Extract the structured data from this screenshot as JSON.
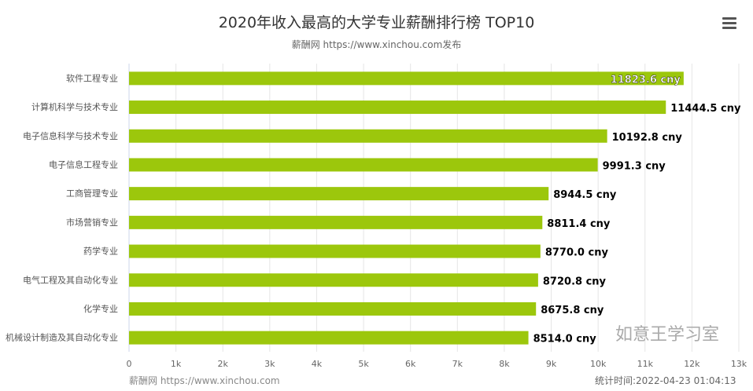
{
  "chart_data": {
    "type": "bar",
    "orientation": "horizontal",
    "title": "2020年收入最高的大学专业薪酬排行榜 TOP10",
    "subtitle": "薪酬网 https://www.xinchou.com发布",
    "categories": [
      "软件工程专业",
      "计算机科学与技术专业",
      "电子信息科学与技术专业",
      "电子信息工程专业",
      "工商管理专业",
      "市场营销专业",
      "药学专业",
      "电气工程及其自动化专业",
      "化学专业",
      "机械设计制造及其自动化专业"
    ],
    "values": [
      11823.6,
      11444.5,
      10192.8,
      9991.3,
      8944.5,
      8811.4,
      8770.0,
      8720.8,
      8675.8,
      8514.0
    ],
    "data_labels": [
      "11823.6 cny",
      "11444.5 cny",
      "10192.8 cny",
      "9991.3 cny",
      "8944.5 cny",
      "8811.4 cny",
      "8770.0 cny",
      "8720.8 cny",
      "8675.8 cny",
      "8514.0 cny"
    ],
    "x_ticks": [
      "0",
      "1k",
      "2k",
      "3k",
      "4k",
      "5k",
      "6k",
      "7k",
      "8k",
      "9k",
      "10k",
      "11k",
      "12k",
      "13k"
    ],
    "xlim": [
      0,
      13000
    ],
    "grid": true,
    "bar_color": "#9cc70c"
  },
  "watermark": "薪酬网 https://www.xinchou.com",
  "stamp": "如意王学习室",
  "footer": "统计时间:2022-04-23 01:04:13"
}
